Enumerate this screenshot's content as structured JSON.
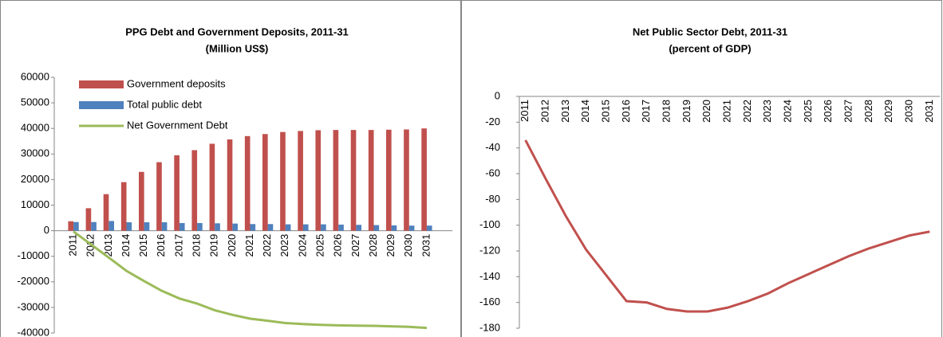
{
  "chart_data": [
    {
      "type": "bar",
      "title": "PPG Debt and Government Deposits, 2011-31",
      "subtitle": "(Million US$)",
      "categories": [
        "2011",
        "2012",
        "2013",
        "2014",
        "2015",
        "2016",
        "2017",
        "2018",
        "2019",
        "2020",
        "2021",
        "2022",
        "2023",
        "2024",
        "2025",
        "2026",
        "2027",
        "2028",
        "2029",
        "2030",
        "2031"
      ],
      "series": [
        {
          "name": "Government deposits",
          "color": "#c0504d",
          "type": "bar",
          "values": [
            3700,
            8800,
            14300,
            19000,
            23000,
            26800,
            29500,
            31500,
            34000,
            35700,
            37000,
            37800,
            38600,
            39000,
            39300,
            39400,
            39400,
            39400,
            39500,
            39600,
            40000
          ]
        },
        {
          "name": "Total public debt",
          "color": "#4f81bd",
          "type": "bar",
          "values": [
            3400,
            3400,
            3800,
            3300,
            3300,
            3300,
            3000,
            3000,
            2900,
            2800,
            2600,
            2600,
            2500,
            2500,
            2500,
            2400,
            2300,
            2200,
            2100,
            2000,
            2000
          ]
        },
        {
          "name": "Net Government Debt",
          "color": "#9bbb59",
          "type": "line",
          "values": [
            -300,
            -5400,
            -10500,
            -15700,
            -19700,
            -23500,
            -26500,
            -28500,
            -31100,
            -32900,
            -34400,
            -35200,
            -36100,
            -36500,
            -36800,
            -37000,
            -37100,
            -37200,
            -37400,
            -37600,
            -38000
          ]
        }
      ],
      "ylim": [
        -40000,
        60000
      ],
      "yticks": [
        -40000,
        -30000,
        -20000,
        -10000,
        0,
        10000,
        20000,
        30000,
        40000,
        50000,
        60000
      ],
      "legend": "top-left"
    },
    {
      "type": "line",
      "title": "Net Public Sector Debt, 2011-31",
      "subtitle": "(percent of GDP)",
      "categories": [
        "2011",
        "2012",
        "2013",
        "2014",
        "2015",
        "2016",
        "2017",
        "2018",
        "2019",
        "2020",
        "2021",
        "2022",
        "2023",
        "2024",
        "2025",
        "2026",
        "2027",
        "2028",
        "2029",
        "2030",
        "2031"
      ],
      "series": [
        {
          "name": "Net Public Sector Debt",
          "color": "#c0504d",
          "values": [
            -34,
            -64,
            -93,
            -119,
            -139,
            -159,
            -160,
            -165,
            -167,
            -167,
            -164,
            -159,
            -153,
            -145,
            -138,
            -131,
            -124,
            -118,
            -113,
            -108,
            -105
          ]
        }
      ],
      "ylim": [
        -180,
        0
      ],
      "yticks": [
        -180,
        -160,
        -140,
        -120,
        -100,
        -80,
        -60,
        -40,
        -20,
        0
      ],
      "legend": "none"
    }
  ]
}
